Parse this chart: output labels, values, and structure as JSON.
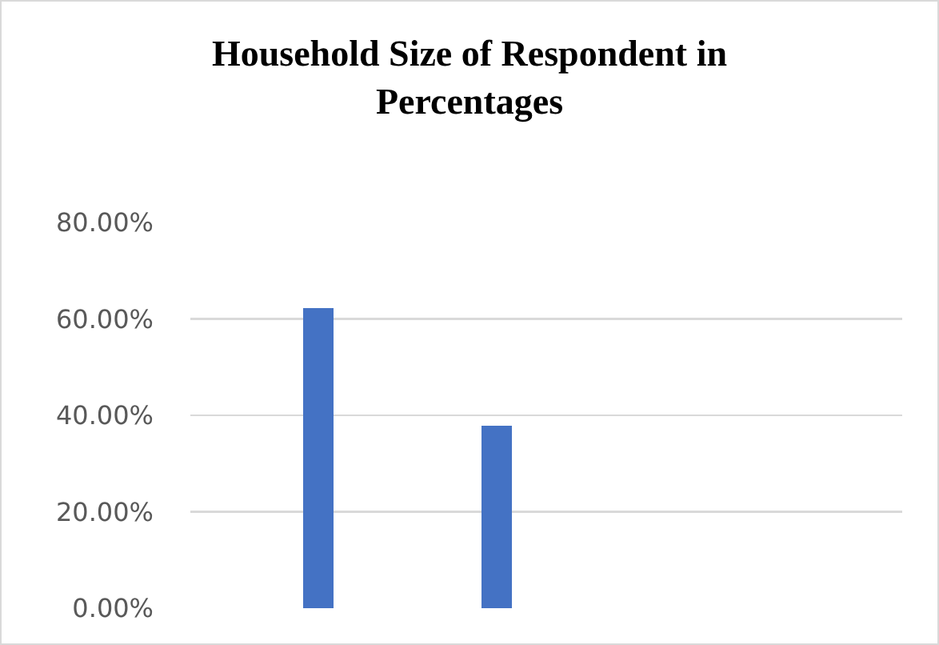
{
  "chart_data": {
    "type": "bar",
    "title": "Household Size of Respondent in Percentages",
    "categories": [
      null,
      null,
      null,
      null
    ],
    "values": [
      62.2,
      37.8,
      null,
      null
    ],
    "color": "#4472c4",
    "ylim": [
      0,
      80
    ],
    "yticks": [
      {
        "value": 0,
        "label": "0.00%"
      },
      {
        "value": 20,
        "label": "20.00%"
      },
      {
        "value": 40,
        "label": "40.00%"
      },
      {
        "value": 60,
        "label": "60.00%"
      },
      {
        "value": 80,
        "label": "80.00%"
      }
    ],
    "grid": "y"
  }
}
